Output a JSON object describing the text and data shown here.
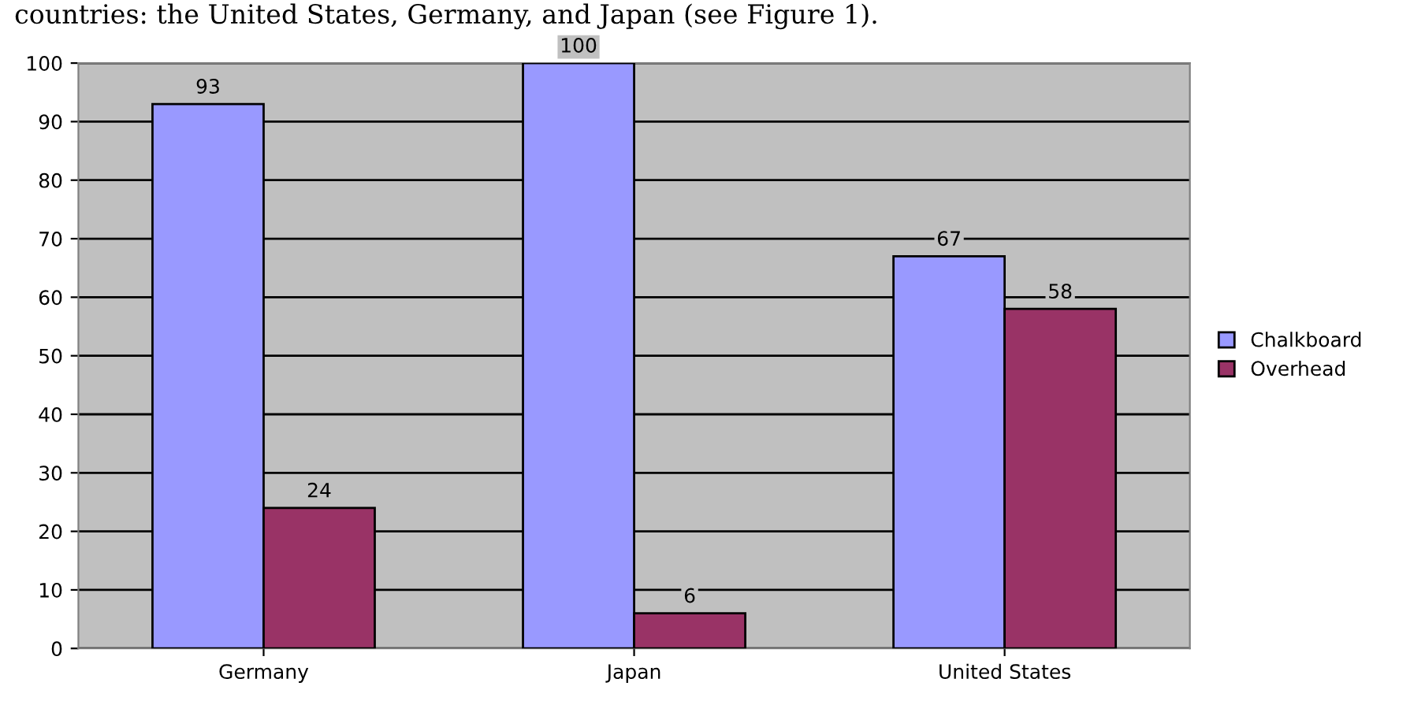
{
  "chart_data": {
    "type": "bar",
    "annotations": [
      "countries: the United States, Germany, and Japan (see Figure 1)."
    ],
    "categories": [
      "Germany",
      "Japan",
      "United States"
    ],
    "series": [
      {
        "name": "Chalkboard",
        "color": "#9999ff",
        "values": [
          93,
          100,
          67
        ]
      },
      {
        "name": "Overhead",
        "color": "#993366",
        "values": [
          24,
          6,
          58
        ]
      }
    ],
    "ylim": [
      0,
      100
    ],
    "yticks": [
      0,
      10,
      20,
      30,
      40,
      50,
      60,
      70,
      80,
      90,
      100
    ],
    "grid": "y",
    "legend": "right",
    "data_labels": true
  }
}
